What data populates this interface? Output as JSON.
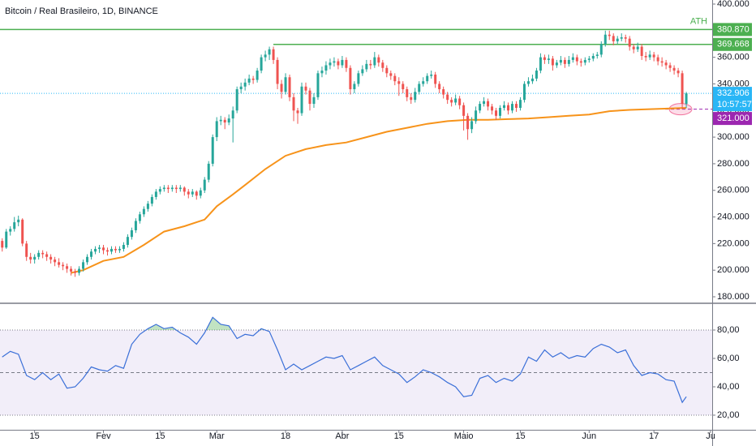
{
  "chart_data": {
    "type": "candlestick",
    "title": "Bitcoin / Real Brasileiro, 1D, BINANCE",
    "xlim": [
      -0.55,
      175.4
    ],
    "xticks": [
      {
        "value": 8,
        "label": "15"
      },
      {
        "value": 25,
        "label": "Fev"
      },
      {
        "value": 39,
        "label": "15"
      },
      {
        "value": 53,
        "label": "Mar"
      },
      {
        "value": 70,
        "label": "18"
      },
      {
        "value": 84,
        "label": "Abr"
      },
      {
        "value": 98,
        "label": "15"
      },
      {
        "value": 114,
        "label": "Maio"
      },
      {
        "value": 128,
        "label": "15"
      },
      {
        "value": 145,
        "label": "Jun"
      },
      {
        "value": 161,
        "label": "17"
      },
      {
        "value": 175,
        "label": "Ju"
      }
    ],
    "ylim": [
      175740,
      403050
    ],
    "yticks": [
      {
        "value": 400000,
        "label": "400.000"
      },
      {
        "value": 380000,
        "label": "380.000"
      },
      {
        "value": 360000,
        "label": "360.000"
      },
      {
        "value": 340000,
        "label": "340.000"
      },
      {
        "value": 320000,
        "label": "320.000"
      },
      {
        "value": 300000,
        "label": "300.000"
      },
      {
        "value": 280000,
        "label": "280.000"
      },
      {
        "value": 260000,
        "label": "260.000"
      },
      {
        "value": 240000,
        "label": "240.000"
      },
      {
        "value": 220000,
        "label": "220.000"
      },
      {
        "value": 200000,
        "label": "200.000"
      },
      {
        "value": 180000,
        "label": "180.000"
      }
    ],
    "up_color": "#26a69a",
    "down_color": "#ef5350",
    "candles": [
      [
        222000,
        224000,
        214000,
        217000
      ],
      [
        217000,
        231000,
        216000,
        229000
      ],
      [
        229000,
        233000,
        226000,
        231000
      ],
      [
        231000,
        240000,
        229000,
        236000
      ],
      [
        236000,
        241000,
        233000,
        238000
      ],
      [
        238000,
        239000,
        218000,
        220000
      ],
      [
        220000,
        222000,
        207000,
        210000
      ],
      [
        210000,
        213000,
        205000,
        208000
      ],
      [
        208000,
        212000,
        205000,
        210000
      ],
      [
        210000,
        215000,
        208000,
        213000
      ],
      [
        213000,
        215000,
        209000,
        212000
      ],
      [
        212000,
        214000,
        207000,
        210000
      ],
      [
        210000,
        212000,
        205000,
        208000
      ],
      [
        208000,
        210000,
        203000,
        206000
      ],
      [
        206000,
        209000,
        202000,
        204000
      ],
      [
        204000,
        206000,
        200000,
        203000
      ],
      [
        203000,
        205000,
        198000,
        201000
      ],
      [
        201000,
        203000,
        196000,
        199000
      ],
      [
        199000,
        201000,
        195000,
        198000
      ],
      [
        198000,
        203000,
        196000,
        201000
      ],
      [
        201000,
        208000,
        199000,
        206000
      ],
      [
        206000,
        212000,
        204000,
        210000
      ],
      [
        210000,
        216000,
        208000,
        214000
      ],
      [
        214000,
        218000,
        212000,
        216000
      ],
      [
        216000,
        219000,
        213000,
        217000
      ],
      [
        217000,
        219000,
        212000,
        215000
      ],
      [
        215000,
        217000,
        211000,
        214000
      ],
      [
        214000,
        218000,
        212000,
        216000
      ],
      [
        216000,
        218000,
        213000,
        215000
      ],
      [
        215000,
        218000,
        213000,
        216000
      ],
      [
        216000,
        221000,
        214000,
        219000
      ],
      [
        219000,
        227000,
        217000,
        225000
      ],
      [
        225000,
        232000,
        223000,
        230000
      ],
      [
        230000,
        239000,
        228000,
        237000
      ],
      [
        237000,
        244000,
        235000,
        242000
      ],
      [
        242000,
        248000,
        240000,
        246000
      ],
      [
        246000,
        252000,
        244000,
        250000
      ],
      [
        250000,
        257000,
        248000,
        255000
      ],
      [
        255000,
        261000,
        253000,
        259000
      ],
      [
        259000,
        263000,
        257000,
        261000
      ],
      [
        261000,
        264000,
        259000,
        262000
      ],
      [
        262000,
        264000,
        258000,
        261000
      ],
      [
        261000,
        264000,
        259000,
        262000
      ],
      [
        262000,
        264000,
        258000,
        261000
      ],
      [
        261000,
        264000,
        259000,
        262000
      ],
      [
        262000,
        263000,
        256000,
        259000
      ],
      [
        259000,
        261000,
        254000,
        257000
      ],
      [
        257000,
        261000,
        255000,
        259000
      ],
      [
        259000,
        260000,
        253000,
        256000
      ],
      [
        256000,
        262000,
        254000,
        260000
      ],
      [
        260000,
        270000,
        258000,
        268000
      ],
      [
        268000,
        282000,
        266000,
        280000
      ],
      [
        280000,
        302000,
        278000,
        300000
      ],
      [
        300000,
        315000,
        297000,
        312000
      ],
      [
        312000,
        316000,
        309000,
        313000
      ],
      [
        313000,
        315000,
        306000,
        311000
      ],
      [
        311000,
        317000,
        309000,
        314000
      ],
      [
        314000,
        323000,
        296000,
        320000
      ],
      [
        320000,
        338000,
        318000,
        336000
      ],
      [
        336000,
        341000,
        333000,
        338000
      ],
      [
        338000,
        344000,
        335000,
        341000
      ],
      [
        341000,
        347000,
        339000,
        344000
      ],
      [
        344000,
        346000,
        340000,
        343000
      ],
      [
        343000,
        352000,
        341000,
        350000
      ],
      [
        350000,
        362000,
        348000,
        360000
      ],
      [
        360000,
        365000,
        357000,
        362000
      ],
      [
        362000,
        368000,
        358000,
        366000
      ],
      [
        366000,
        368000,
        355000,
        358000
      ],
      [
        358000,
        360000,
        336000,
        340000
      ],
      [
        340000,
        343000,
        329000,
        334000
      ],
      [
        334000,
        348000,
        332000,
        345000
      ],
      [
        345000,
        347000,
        327000,
        330000
      ],
      [
        330000,
        333000,
        312000,
        320000
      ],
      [
        320000,
        322000,
        310000,
        318000
      ],
      [
        318000,
        341000,
        316000,
        338000
      ],
      [
        338000,
        341000,
        332000,
        335000
      ],
      [
        335000,
        337000,
        320000,
        325000
      ],
      [
        325000,
        333000,
        322000,
        330000
      ],
      [
        330000,
        350000,
        328000,
        348000
      ],
      [
        348000,
        353000,
        345000,
        350000
      ],
      [
        350000,
        357000,
        347000,
        354000
      ],
      [
        354000,
        359000,
        351000,
        356000
      ],
      [
        356000,
        360000,
        353000,
        357000
      ],
      [
        357000,
        359000,
        351000,
        354000
      ],
      [
        354000,
        361000,
        352000,
        358000
      ],
      [
        358000,
        360000,
        349000,
        352000
      ],
      [
        352000,
        354000,
        332000,
        336000
      ],
      [
        336000,
        342000,
        333000,
        340000
      ],
      [
        340000,
        350000,
        338000,
        348000
      ],
      [
        348000,
        354000,
        346000,
        351000
      ],
      [
        351000,
        358000,
        349000,
        355000
      ],
      [
        355000,
        358000,
        351000,
        354000
      ],
      [
        354000,
        364000,
        352000,
        360000
      ],
      [
        360000,
        362000,
        353000,
        356000
      ],
      [
        356000,
        358000,
        349000,
        352000
      ],
      [
        352000,
        354000,
        345000,
        348000
      ],
      [
        348000,
        350000,
        343000,
        346000
      ],
      [
        346000,
        348000,
        339000,
        342000
      ],
      [
        342000,
        345000,
        331000,
        340000
      ],
      [
        340000,
        342000,
        333000,
        336000
      ],
      [
        336000,
        338000,
        327000,
        330000
      ],
      [
        330000,
        333000,
        325000,
        328000
      ],
      [
        328000,
        337000,
        326000,
        334000
      ],
      [
        334000,
        342000,
        332000,
        340000
      ],
      [
        340000,
        345000,
        338000,
        342000
      ],
      [
        342000,
        348000,
        340000,
        346000
      ],
      [
        346000,
        350000,
        344000,
        347000
      ],
      [
        347000,
        349000,
        337000,
        340000
      ],
      [
        340000,
        342000,
        333000,
        336000
      ],
      [
        336000,
        338000,
        329000,
        332000
      ],
      [
        332000,
        334000,
        325000,
        328000
      ],
      [
        328000,
        330000,
        323000,
        326000
      ],
      [
        326000,
        332000,
        324000,
        329000
      ],
      [
        329000,
        331000,
        321000,
        324000
      ],
      [
        324000,
        326000,
        305000,
        316000
      ],
      [
        316000,
        318000,
        298000,
        306000
      ],
      [
        306000,
        315000,
        303000,
        312000
      ],
      [
        312000,
        323000,
        310000,
        320000
      ],
      [
        320000,
        327000,
        318000,
        325000
      ],
      [
        325000,
        330000,
        323000,
        327000
      ],
      [
        327000,
        329000,
        320000,
        323000
      ],
      [
        323000,
        325000,
        317000,
        320000
      ],
      [
        320000,
        322000,
        313000,
        316000
      ],
      [
        316000,
        324000,
        314000,
        322000
      ],
      [
        322000,
        327000,
        320000,
        324000
      ],
      [
        324000,
        326000,
        317000,
        320000
      ],
      [
        320000,
        327000,
        318000,
        325000
      ],
      [
        325000,
        327000,
        319000,
        322000
      ],
      [
        322000,
        330000,
        320000,
        328000
      ],
      [
        328000,
        342000,
        326000,
        340000
      ],
      [
        340000,
        345000,
        338000,
        342000
      ],
      [
        342000,
        347000,
        340000,
        344000
      ],
      [
        344000,
        352000,
        342000,
        350000
      ],
      [
        350000,
        363000,
        348000,
        360000
      ],
      [
        360000,
        362000,
        355000,
        358000
      ],
      [
        358000,
        362000,
        355000,
        359000
      ],
      [
        359000,
        361000,
        350000,
        354000
      ],
      [
        354000,
        358000,
        352000,
        356000
      ],
      [
        356000,
        361000,
        354000,
        358000
      ],
      [
        358000,
        360000,
        352000,
        355000
      ],
      [
        355000,
        361000,
        353000,
        358000
      ],
      [
        358000,
        363000,
        356000,
        360000
      ],
      [
        360000,
        362000,
        354000,
        357000
      ],
      [
        357000,
        359000,
        353000,
        356000
      ],
      [
        356000,
        360000,
        354000,
        358000
      ],
      [
        358000,
        361000,
        356000,
        359000
      ],
      [
        359000,
        363000,
        357000,
        361000
      ],
      [
        361000,
        364000,
        359000,
        362000
      ],
      [
        362000,
        372000,
        360000,
        370000
      ],
      [
        370000,
        380000,
        368000,
        377000
      ],
      [
        377000,
        380000,
        373000,
        376000
      ],
      [
        376000,
        378000,
        369000,
        372000
      ],
      [
        372000,
        376000,
        370000,
        374000
      ],
      [
        374000,
        378000,
        372000,
        375000
      ],
      [
        375000,
        377000,
        371000,
        374000
      ],
      [
        374000,
        376000,
        365000,
        368000
      ],
      [
        368000,
        370000,
        363000,
        366000
      ],
      [
        366000,
        371000,
        364000,
        368000
      ],
      [
        368000,
        370000,
        358000,
        361000
      ],
      [
        361000,
        364000,
        357000,
        360000
      ],
      [
        360000,
        365000,
        358000,
        362000
      ],
      [
        362000,
        364000,
        357000,
        360000
      ],
      [
        360000,
        362000,
        354000,
        357000
      ],
      [
        357000,
        360000,
        353000,
        356000
      ],
      [
        356000,
        358000,
        351000,
        354000
      ],
      [
        354000,
        356000,
        349000,
        352000
      ],
      [
        352000,
        354000,
        347000,
        350000
      ],
      [
        350000,
        352000,
        345000,
        348000
      ],
      [
        348000,
        350000,
        321000,
        325000
      ],
      [
        325000,
        334000,
        322000,
        332906
      ]
    ],
    "moving_average": {
      "color": "#f7931a",
      "x": [
        17,
        20,
        25,
        30,
        35,
        40,
        45,
        50,
        53,
        57,
        60,
        65,
        70,
        75,
        80,
        85,
        90,
        95,
        100,
        105,
        110,
        115,
        120,
        125,
        130,
        135,
        140,
        145,
        150,
        155,
        160,
        165,
        169
      ],
      "values": [
        198000,
        200000,
        207000,
        210000,
        219000,
        229000,
        233000,
        238000,
        248000,
        257000,
        264000,
        276000,
        286000,
        291000,
        294000,
        296000,
        300000,
        304000,
        307000,
        310000,
        312000,
        313000,
        313000,
        313500,
        314000,
        315000,
        316000,
        317000,
        319500,
        320500,
        321000,
        321500,
        322000
      ]
    },
    "levels": [
      {
        "label": "ATH",
        "value": 380870,
        "value_label": "380.870",
        "color": "#4caf50"
      },
      {
        "value": 369668,
        "value_label": "369.668",
        "color": "#4caf50"
      },
      {
        "value": 332906,
        "value_label": "332.906",
        "countdown": "10:57:57",
        "color": "#29b6f6"
      },
      {
        "value": 321000,
        "value_label": "321.000",
        "color": "#9c27b0"
      }
    ],
    "rsi": {
      "type": "line",
      "color": "#3a6fd8",
      "ylim": [
        9.7,
        98.3
      ],
      "yticks": [
        {
          "value": 80,
          "label": "80,00"
        },
        {
          "value": 60,
          "label": "60,00"
        },
        {
          "value": 40,
          "label": "40,00"
        },
        {
          "value": 20,
          "label": "20,00"
        }
      ],
      "band": [
        20,
        80
      ],
      "midline": 50,
      "x": [
        0,
        2,
        4,
        6,
        8,
        10,
        12,
        14,
        16,
        18,
        20,
        22,
        24,
        26,
        28,
        30,
        32,
        34,
        36,
        38,
        40,
        42,
        44,
        46,
        48,
        50,
        52,
        54,
        56,
        58,
        60,
        62,
        64,
        66,
        68,
        70,
        72,
        74,
        76,
        78,
        80,
        82,
        84,
        86,
        88,
        90,
        92,
        94,
        96,
        98,
        100,
        102,
        104,
        106,
        108,
        110,
        112,
        114,
        116,
        118,
        120,
        122,
        124,
        126,
        128,
        130,
        132,
        134,
        136,
        138,
        140,
        142,
        144,
        146,
        148,
        150,
        152,
        154,
        156,
        158,
        160,
        162,
        164,
        166,
        168,
        169
      ],
      "values": [
        61,
        65,
        63,
        48,
        45,
        50,
        45,
        49,
        39,
        40,
        46,
        54,
        52,
        51,
        55,
        53,
        70,
        77,
        81,
        84,
        81,
        82,
        78,
        75,
        70,
        78,
        89,
        84,
        83,
        74,
        77,
        76,
        81,
        79,
        66,
        52,
        56,
        52,
        55,
        58,
        61,
        60,
        62,
        52,
        55,
        58,
        61,
        55,
        52,
        49,
        43,
        47,
        52,
        50,
        47,
        43,
        40,
        33,
        34,
        46,
        48,
        43,
        46,
        44,
        49,
        61,
        58,
        66,
        61,
        64,
        60,
        62,
        61,
        67,
        70,
        68,
        64,
        66,
        55,
        48,
        50,
        49,
        45,
        44,
        29,
        33
      ]
    }
  }
}
